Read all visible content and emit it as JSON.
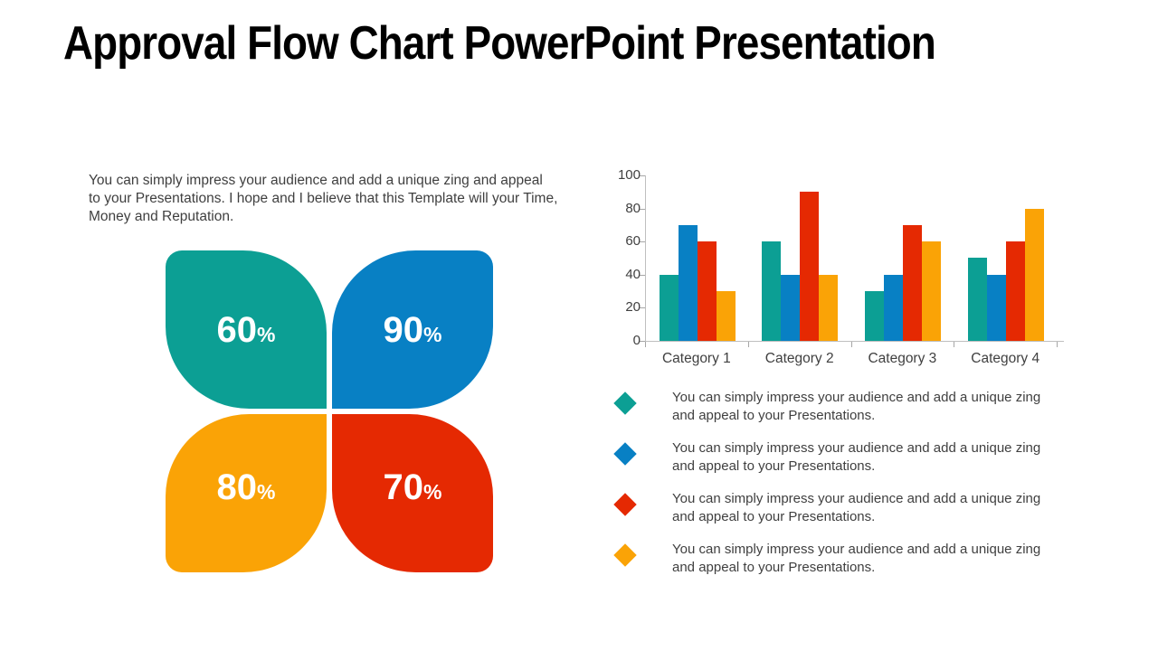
{
  "title": "Approval Flow Chart PowerPoint Presentation",
  "intro": {
    "lines": [
      "You can simply impress your audience and add a unique zing and appeal",
      "to your Presentations. I hope and I believe that this Template will your Time,",
      "Money and Reputation."
    ]
  },
  "petals": [
    {
      "name": "top-left",
      "value": "60",
      "suffix": "%",
      "color": "#0c9f94"
    },
    {
      "name": "top-right",
      "value": "90",
      "suffix": "%",
      "color": "#0880c4"
    },
    {
      "name": "bottom-left",
      "value": "80",
      "suffix": "%",
      "color": "#faa306"
    },
    {
      "name": "bottom-right",
      "value": "70",
      "suffix": "%",
      "color": "#e52902"
    }
  ],
  "chart_data": {
    "type": "bar",
    "title": "",
    "xlabel": "",
    "ylabel": "",
    "categories": [
      "Category 1",
      "Category 2",
      "Category 3",
      "Category 4"
    ],
    "series": [
      {
        "name": "teal",
        "color": "#0c9f94",
        "values": [
          40,
          60,
          30,
          50
        ]
      },
      {
        "name": "blue",
        "color": "#0880c4",
        "values": [
          70,
          40,
          40,
          40
        ]
      },
      {
        "name": "red",
        "color": "#e52902",
        "values": [
          60,
          90,
          70,
          60
        ]
      },
      {
        "name": "orange",
        "color": "#faa306",
        "values": [
          30,
          40,
          60,
          80
        ]
      }
    ],
    "ylim": [
      0,
      100
    ],
    "yticks": [
      0,
      20,
      40,
      60,
      80,
      100
    ],
    "grid": false,
    "legend_position": "below-as-text-bullets"
  },
  "legend": {
    "items": [
      {
        "name": "teal",
        "color": "#0c9f94",
        "lines": [
          "You can simply impress your audience and add a unique zing",
          "and appeal to your Presentations."
        ]
      },
      {
        "name": "blue",
        "color": "#0880c4",
        "lines": [
          "You can simply impress your audience and add a unique zing",
          "and appeal to your Presentations."
        ]
      },
      {
        "name": "red",
        "color": "#e52902",
        "lines": [
          "You can simply impress your audience and add a unique zing",
          "and appeal to your Presentations."
        ]
      },
      {
        "name": "orange",
        "color": "#faa306",
        "lines": [
          "You can simply impress your audience and add a unique zing",
          "and appeal to your Presentations."
        ]
      }
    ]
  },
  "colors": {
    "axis_line": "#bfbfbf",
    "tick": "#a6a6a6",
    "axis_text": "#404040",
    "body_text": "#3f3f3f",
    "title_text": "#000000"
  }
}
